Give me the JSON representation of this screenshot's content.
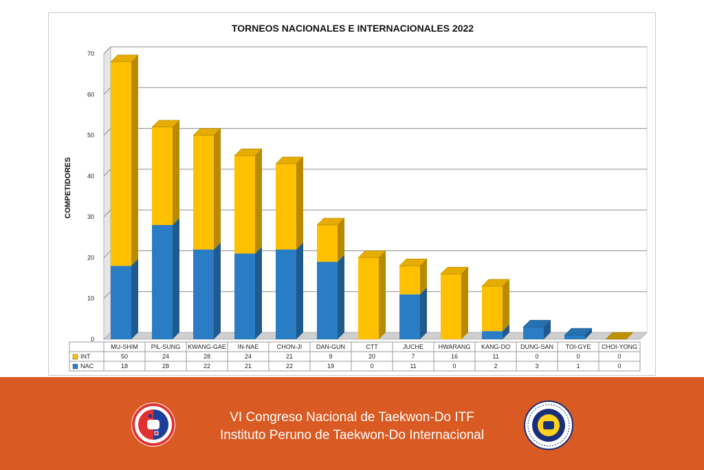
{
  "chart_data": {
    "type": "bar",
    "stacked": true,
    "three_d": true,
    "title": "TORNEOS NACIONALES E INTERNACIONALES  2022",
    "ylabel": "COMPETIDORES",
    "ylim": [
      0,
      70
    ],
    "yticks": [
      0,
      10,
      20,
      30,
      40,
      50,
      60,
      70
    ],
    "grid": true,
    "legend_placement": "data-table",
    "categories": [
      "MU-SHIM",
      "PIL-SUNG",
      "KWANG-GAE",
      "IN-NAE",
      "CHON-JI",
      "DAN-GUN",
      "CTT",
      "JUCHE",
      "HWARANG",
      "KANG-DO",
      "DUNG-SAN",
      "TOI-GYE",
      "CHOI-YONG"
    ],
    "series": [
      {
        "name": "NAC",
        "color": "#2a7dc4",
        "values": [
          18,
          28,
          22,
          21,
          22,
          19,
          0,
          11,
          0,
          2,
          3,
          1,
          0
        ]
      },
      {
        "name": "INT",
        "color": "#ffc000",
        "values": [
          50,
          24,
          28,
          24,
          21,
          9,
          20,
          7,
          16,
          11,
          0,
          0,
          0
        ]
      }
    ],
    "table_rows": [
      {
        "name": "INT",
        "color": "#ffc000",
        "values": [
          "50",
          "24",
          "28",
          "24",
          "21",
          "9",
          "20",
          "7",
          "16",
          "11",
          "0",
          "0",
          "0"
        ]
      },
      {
        "name": "NAC",
        "color": "#2a7dc4",
        "values": [
          "18",
          "28",
          "22",
          "21",
          "22",
          "19",
          "0",
          "11",
          "0",
          "2",
          "3",
          "1",
          "0"
        ]
      }
    ]
  },
  "footer": {
    "line1": "VI Congreso Nacional de Taekwon-Do ITF",
    "line2": "Instituto Peruno de Taekwon-Do Internacional",
    "background": "#d95a22"
  },
  "icons": {
    "left_logo": "ipti-logo-icon",
    "right_logo": "itf-logo-icon"
  }
}
